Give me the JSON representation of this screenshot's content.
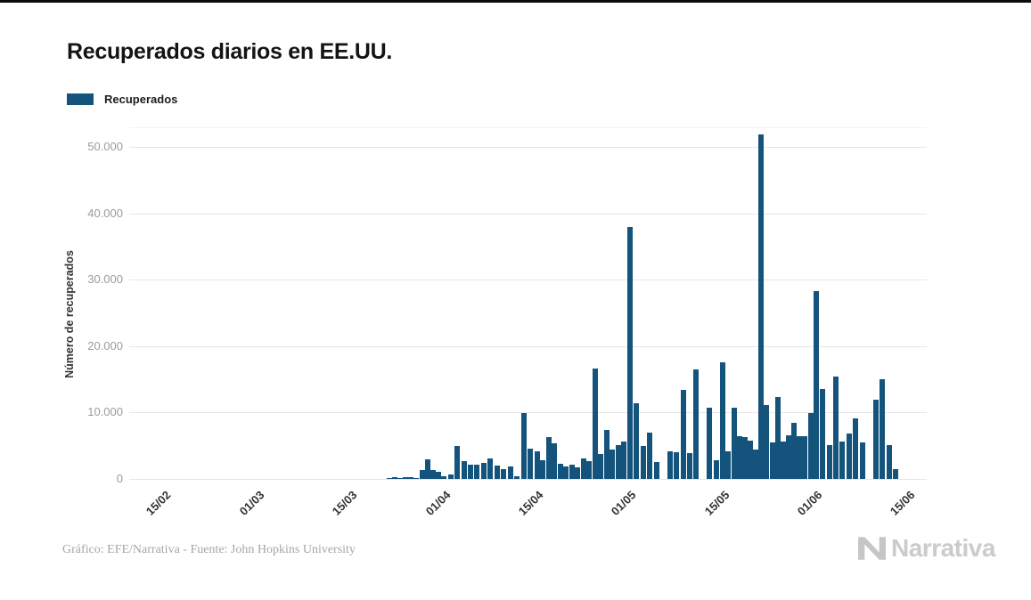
{
  "title": "Recuperados diarios en EE.UU.",
  "legend": {
    "label": "Recuperados",
    "swatch_color": "#14537C"
  },
  "footer": {
    "credit": "Gráfico: EFE/Narrativa - Fuente: John Hopkins University",
    "brand": "Narrativa"
  },
  "chart_data": {
    "type": "bar",
    "title": "Recuperados diarios en EE.UU.",
    "xlabel": "",
    "ylabel": "Número de recuperados",
    "ylim": [
      0,
      53000
    ],
    "yticks": [
      0,
      10000,
      20000,
      30000,
      40000,
      50000
    ],
    "ytick_labels": [
      "0",
      "10.000",
      "20.000",
      "30.000",
      "40.000",
      "50.000"
    ],
    "xticks": [
      "15/02",
      "01/03",
      "15/03",
      "01/04",
      "15/04",
      "01/05",
      "15/05",
      "01/06",
      "15/06"
    ],
    "grid": true,
    "legend_position": "top-left",
    "bar_color": "#14537C",
    "series": [
      {
        "name": "Recuperados",
        "dates": [
          "22/03",
          "23/03",
          "24/03",
          "25/03",
          "26/03",
          "27/03",
          "28/03",
          "29/03",
          "30/03",
          "31/03",
          "01/04",
          "02/04",
          "03/04",
          "04/04",
          "05/04",
          "06/04",
          "07/04",
          "08/04",
          "09/04",
          "10/04",
          "11/04",
          "12/04",
          "13/04",
          "14/04",
          "15/04",
          "16/04",
          "17/04",
          "18/04",
          "19/04",
          "20/04",
          "21/04",
          "22/04",
          "23/04",
          "24/04",
          "25/04",
          "26/04",
          "27/04",
          "28/04",
          "29/04",
          "30/04",
          "01/05",
          "02/05",
          "03/05",
          "04/05",
          "05/05",
          "06/05",
          "07/05",
          "08/05",
          "09/05",
          "10/05",
          "11/05",
          "12/05",
          "13/05",
          "14/05",
          "15/05",
          "16/05",
          "17/05",
          "18/05",
          "19/05",
          "20/05",
          "21/05",
          "22/05",
          "23/05",
          "24/05",
          "25/05",
          "26/05",
          "27/05",
          "28/05",
          "29/05",
          "30/05",
          "31/05",
          "01/06",
          "02/06",
          "03/06",
          "04/06",
          "05/06",
          "06/06",
          "07/06",
          "08/06",
          "09/06",
          "10/06",
          "11/06",
          "12/06",
          "13/06"
        ],
        "values": [
          200,
          230,
          100,
          310,
          250,
          150,
          1400,
          3000,
          1350,
          1080,
          400,
          720,
          5000,
          2650,
          2100,
          2100,
          2430,
          3100,
          2070,
          1530,
          1850,
          400,
          10000,
          4590,
          4230,
          2790,
          6260,
          5360,
          2300,
          1900,
          2100,
          1760,
          3100,
          2660,
          16700,
          3800,
          7390,
          4370,
          5140,
          5590,
          38000,
          11350,
          4910,
          7030,
          2610,
          0,
          4100,
          4000,
          13470,
          3870,
          16490,
          0,
          10720,
          2790,
          17610,
          4140,
          10800,
          6400,
          6300,
          5810,
          4460,
          51900,
          11200,
          5500,
          12400,
          5700,
          6600,
          8500,
          6500,
          6500,
          10000,
          28330,
          13560,
          5140,
          15500,
          5700,
          6850,
          9190,
          5500,
          0,
          11980,
          15050,
          5140,
          1530
        ]
      }
    ]
  }
}
